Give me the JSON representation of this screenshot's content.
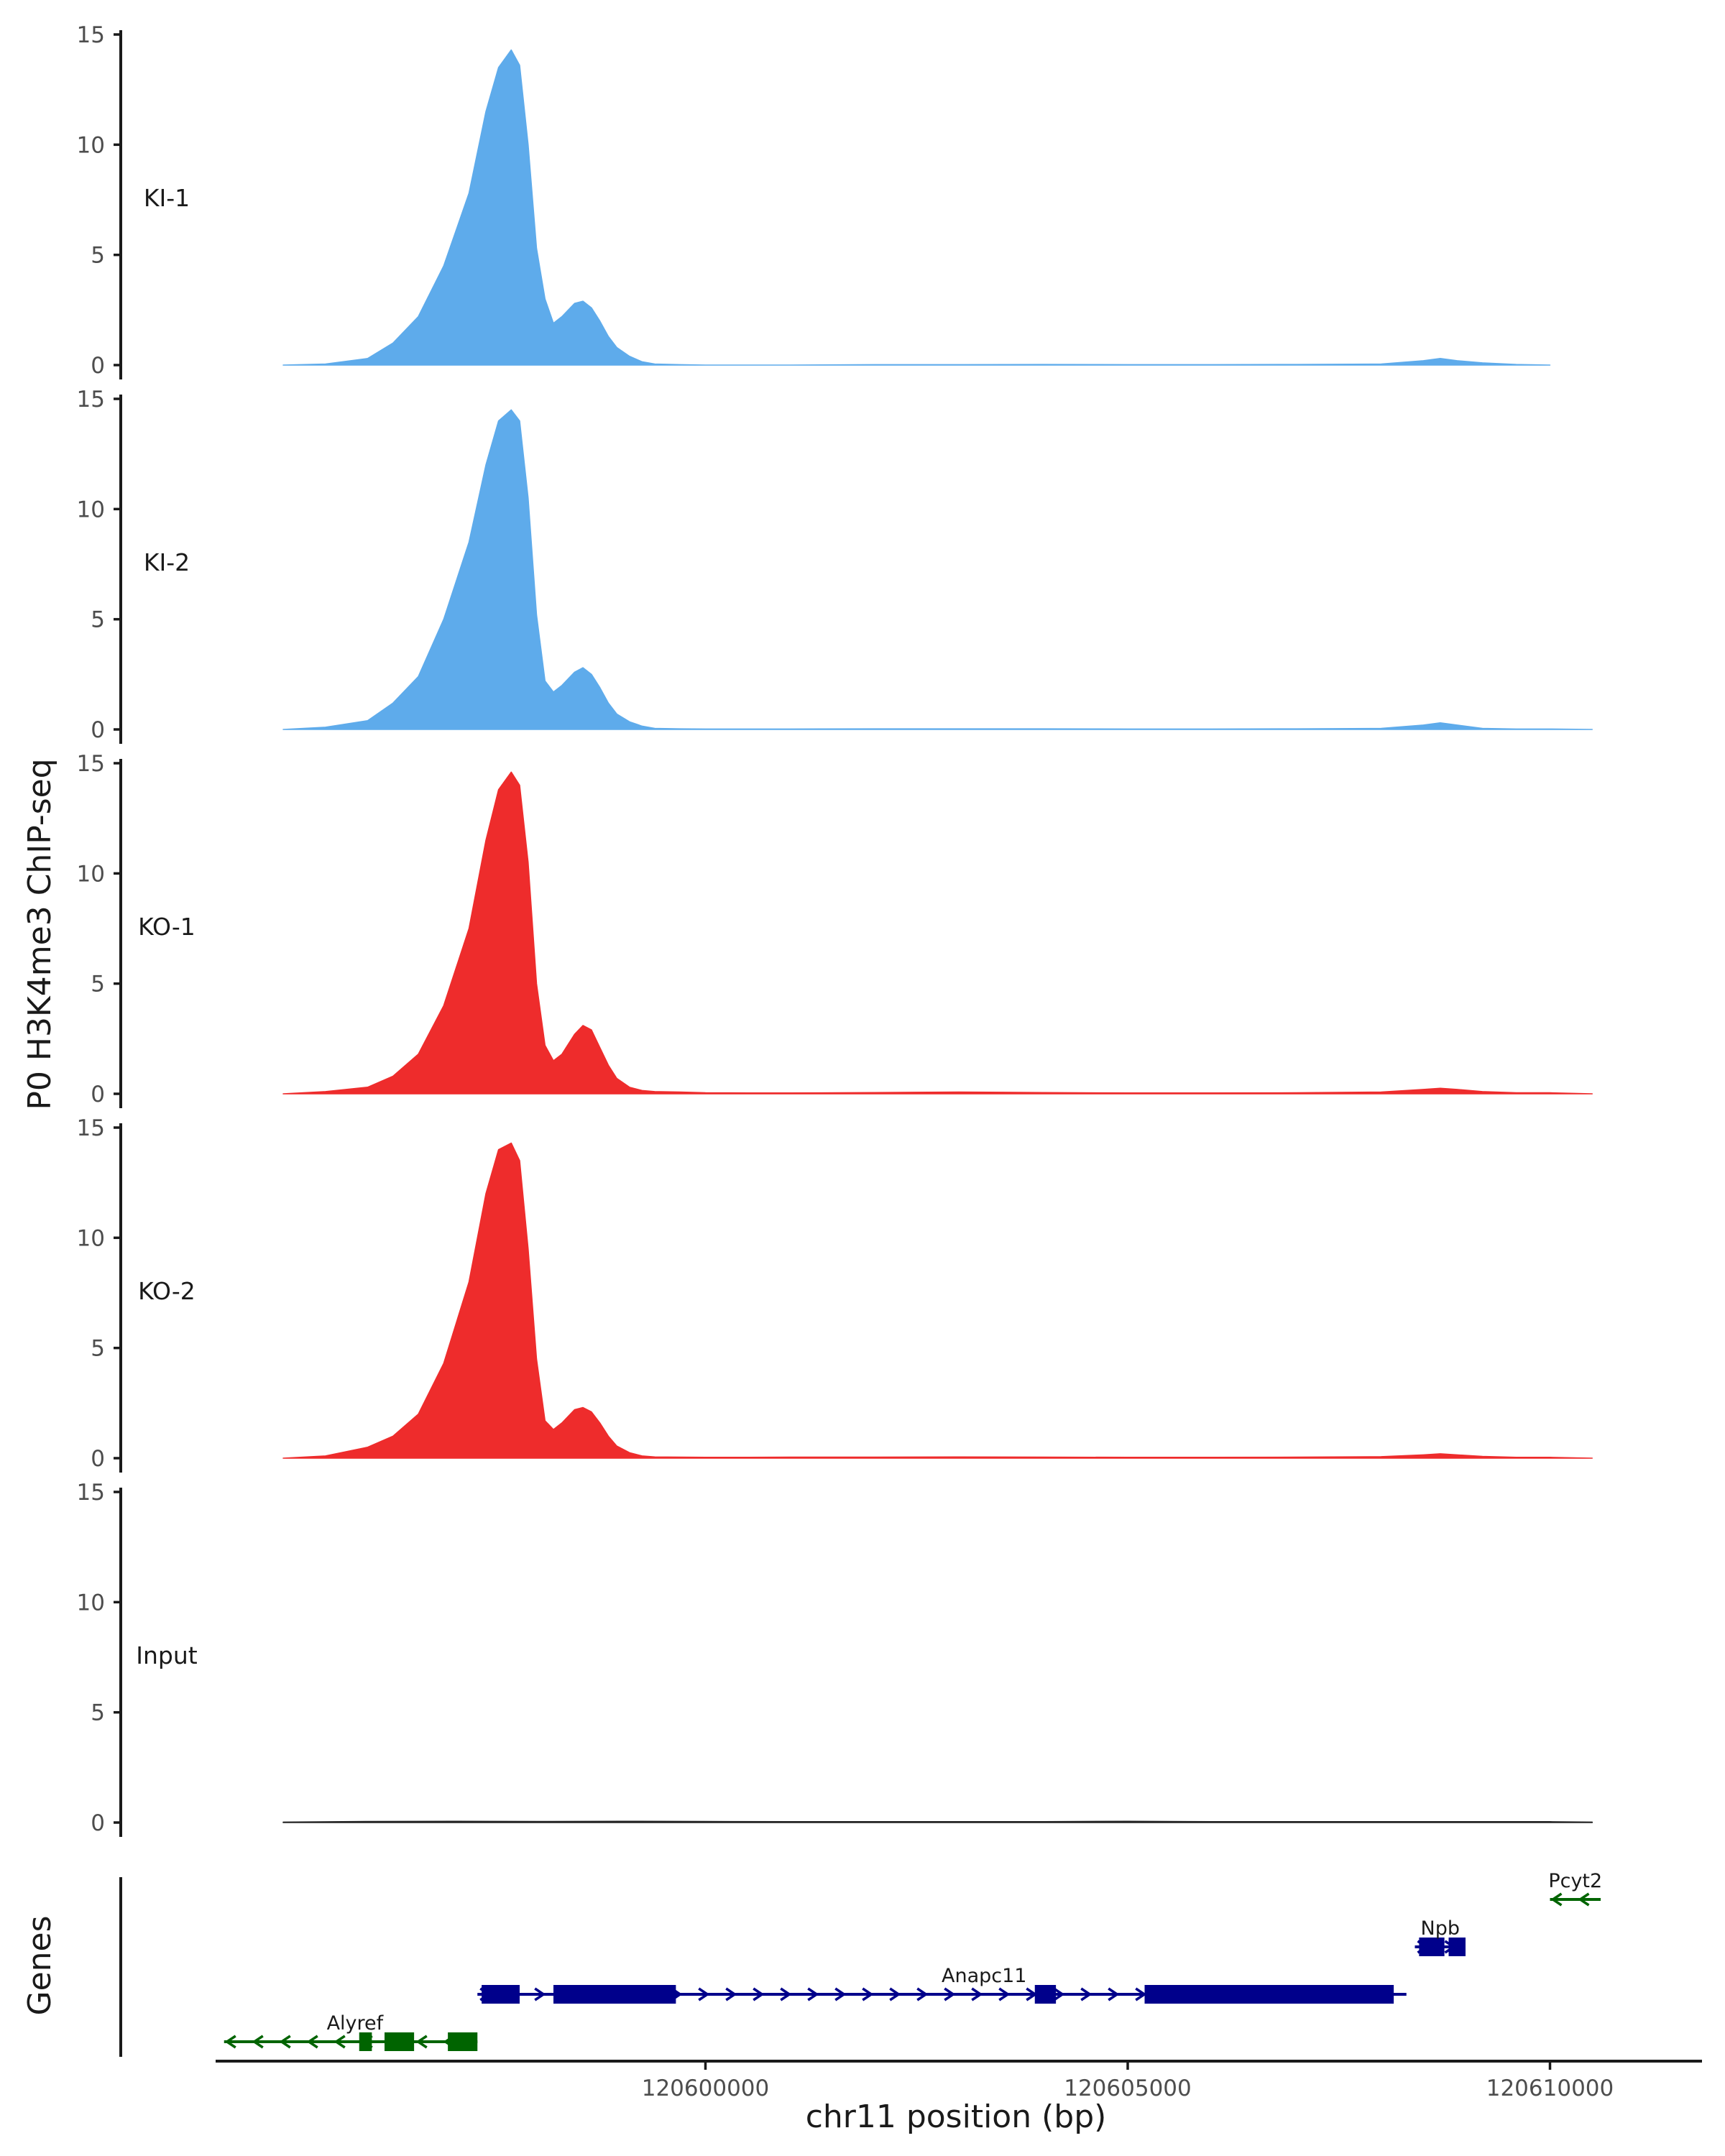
{
  "chart_data": {
    "type": "area",
    "ylabel": "P0 H3K4me3 ChIP-seq",
    "xlabel": "chr11 position (bp)",
    "genes_label": "Genes",
    "ylim": [
      0,
      15
    ],
    "yticks": [
      0,
      5,
      10,
      15
    ],
    "xlim": [
      120594200,
      120611800
    ],
    "xticks": [
      120600000,
      120605000,
      120610000
    ],
    "grid": false,
    "tracks": [
      {
        "name": "KI-1",
        "color": "#5EABEB",
        "x": [
          120595000,
          120595500,
          120596000,
          120596300,
          120596600,
          120596900,
          120597200,
          120597400,
          120597550,
          120597700,
          120597800,
          120597900,
          120598000,
          120598100,
          120598200,
          120598300,
          120598450,
          120598550,
          120598650,
          120598750,
          120598850,
          120598950,
          120599100,
          120599250,
          120599400,
          120599700,
          120600000,
          120600500,
          120601000,
          120602000,
          120603000,
          120604000,
          120605000,
          120606000,
          120607000,
          120608000,
          120608500,
          120608700,
          120608900,
          120609200,
          120609600,
          120610000
        ],
        "values": [
          0,
          0.05,
          0.3,
          1.0,
          2.2,
          4.5,
          7.8,
          11.5,
          13.5,
          14.3,
          13.6,
          10.0,
          5.3,
          3.0,
          1.9,
          2.2,
          2.8,
          2.9,
          2.6,
          2.0,
          1.3,
          0.8,
          0.4,
          0.15,
          0.05,
          0.02,
          0,
          0,
          0,
          0.02,
          0.02,
          0.03,
          0.02,
          0.02,
          0.03,
          0.05,
          0.2,
          0.3,
          0.2,
          0.1,
          0.03,
          0
        ]
      },
      {
        "name": "KI-2",
        "color": "#5EABEB",
        "x": [
          120595000,
          120595500,
          120596000,
          120596300,
          120596600,
          120596900,
          120597200,
          120597400,
          120597550,
          120597700,
          120597800,
          120597900,
          120598000,
          120598100,
          120598200,
          120598300,
          120598450,
          120598550,
          120598650,
          120598750,
          120598850,
          120598950,
          120599100,
          120599250,
          120599400,
          120599700,
          120600000,
          120600500,
          120601000,
          120602000,
          120603000,
          120604000,
          120605000,
          120606000,
          120607000,
          120608000,
          120608500,
          120608700,
          120608900,
          120609200,
          120609600,
          120610000,
          120610500
        ],
        "values": [
          0,
          0.1,
          0.4,
          1.2,
          2.4,
          5.0,
          8.5,
          12.0,
          14.0,
          14.5,
          14.0,
          10.5,
          5.2,
          2.2,
          1.7,
          2.0,
          2.6,
          2.8,
          2.5,
          1.9,
          1.2,
          0.7,
          0.35,
          0.15,
          0.05,
          0.03,
          0.02,
          0.02,
          0.02,
          0.03,
          0.03,
          0.03,
          0.02,
          0.02,
          0.03,
          0.05,
          0.2,
          0.3,
          0.2,
          0.05,
          0.02,
          0.02,
          0
        ]
      },
      {
        "name": "KO-1",
        "color": "#EE2C2C",
        "x": [
          120595000,
          120595500,
          120596000,
          120596300,
          120596600,
          120596900,
          120597200,
          120597400,
          120597550,
          120597700,
          120597800,
          120597900,
          120598000,
          120598100,
          120598200,
          120598300,
          120598450,
          120598550,
          120598650,
          120598750,
          120598850,
          120598950,
          120599100,
          120599250,
          120599400,
          120599700,
          120600000,
          120600500,
          120601000,
          120602000,
          120603000,
          120604000,
          120605000,
          120606000,
          120607000,
          120608000,
          120608500,
          120608700,
          120608900,
          120609200,
          120609600,
          120610000,
          120610500
        ],
        "values": [
          0,
          0.1,
          0.3,
          0.8,
          1.8,
          4.0,
          7.5,
          11.5,
          13.8,
          14.6,
          14.0,
          10.5,
          5.0,
          2.2,
          1.5,
          1.8,
          2.7,
          3.1,
          2.9,
          2.1,
          1.3,
          0.7,
          0.3,
          0.15,
          0.1,
          0.08,
          0.05,
          0.04,
          0.04,
          0.06,
          0.08,
          0.06,
          0.04,
          0.04,
          0.05,
          0.08,
          0.2,
          0.25,
          0.2,
          0.1,
          0.05,
          0.05,
          0
        ]
      },
      {
        "name": "KO-2",
        "color": "#EE2C2C",
        "x": [
          120595000,
          120595500,
          120596000,
          120596300,
          120596600,
          120596900,
          120597200,
          120597400,
          120597550,
          120597700,
          120597800,
          120597900,
          120598000,
          120598100,
          120598200,
          120598300,
          120598450,
          120598550,
          120598650,
          120598750,
          120598850,
          120598950,
          120599100,
          120599250,
          120599400,
          120599700,
          120600000,
          120600500,
          120601000,
          120602000,
          120603000,
          120604000,
          120605000,
          120606000,
          120607000,
          120608000,
          120608500,
          120608700,
          120608900,
          120609200,
          120609600,
          120610000,
          120610500
        ],
        "values": [
          0,
          0.1,
          0.5,
          1.0,
          2.0,
          4.3,
          8.0,
          12.0,
          14.0,
          14.3,
          13.5,
          9.5,
          4.5,
          1.7,
          1.3,
          1.6,
          2.2,
          2.3,
          2.1,
          1.6,
          1.0,
          0.55,
          0.25,
          0.1,
          0.06,
          0.05,
          0.04,
          0.04,
          0.05,
          0.05,
          0.06,
          0.05,
          0.04,
          0.04,
          0.05,
          0.07,
          0.15,
          0.2,
          0.15,
          0.08,
          0.04,
          0.04,
          0
        ]
      },
      {
        "name": "Input",
        "color": "#222222",
        "x": [
          120595000,
          120596000,
          120597000,
          120598000,
          120599000,
          120600000,
          120601000,
          120602000,
          120603000,
          120604000,
          120605000,
          120606000,
          120607000,
          120608000,
          120609000,
          120610000,
          120610500
        ],
        "values": [
          0.02,
          0.05,
          0.06,
          0.05,
          0.06,
          0.05,
          0.04,
          0.04,
          0.04,
          0.04,
          0.06,
          0.04,
          0.04,
          0.04,
          0.04,
          0.04,
          0.02
        ]
      }
    ],
    "genes": [
      {
        "name": "Alyref",
        "strand": "-",
        "color": "#006400",
        "row": 0,
        "start": 120594300,
        "end": 120597300,
        "exons": [
          [
            120595900,
            120596050
          ],
          [
            120596200,
            120596550
          ],
          [
            120596950,
            120597050
          ],
          [
            120597000,
            120597300
          ]
        ]
      },
      {
        "name": "Anapc11",
        "strand": "+",
        "color": "#00008B",
        "row": 1,
        "start": 120597300,
        "end": 120608300,
        "exons": [
          [
            120597350,
            120597800
          ],
          [
            120598200,
            120599650
          ],
          [
            120603900,
            120604150
          ],
          [
            120605200,
            120608150
          ]
        ]
      },
      {
        "name": "Npb",
        "strand": "+",
        "color": "#00008B",
        "row": 2,
        "start": 120608400,
        "end": 120609000,
        "exons": [
          [
            120608450,
            120608750
          ],
          [
            120608800,
            120609000
          ]
        ]
      },
      {
        "name": "Pcyt2",
        "strand": "-",
        "color": "#006400",
        "row": 3,
        "start": 120610000,
        "end": 120610600,
        "exons": []
      }
    ]
  }
}
